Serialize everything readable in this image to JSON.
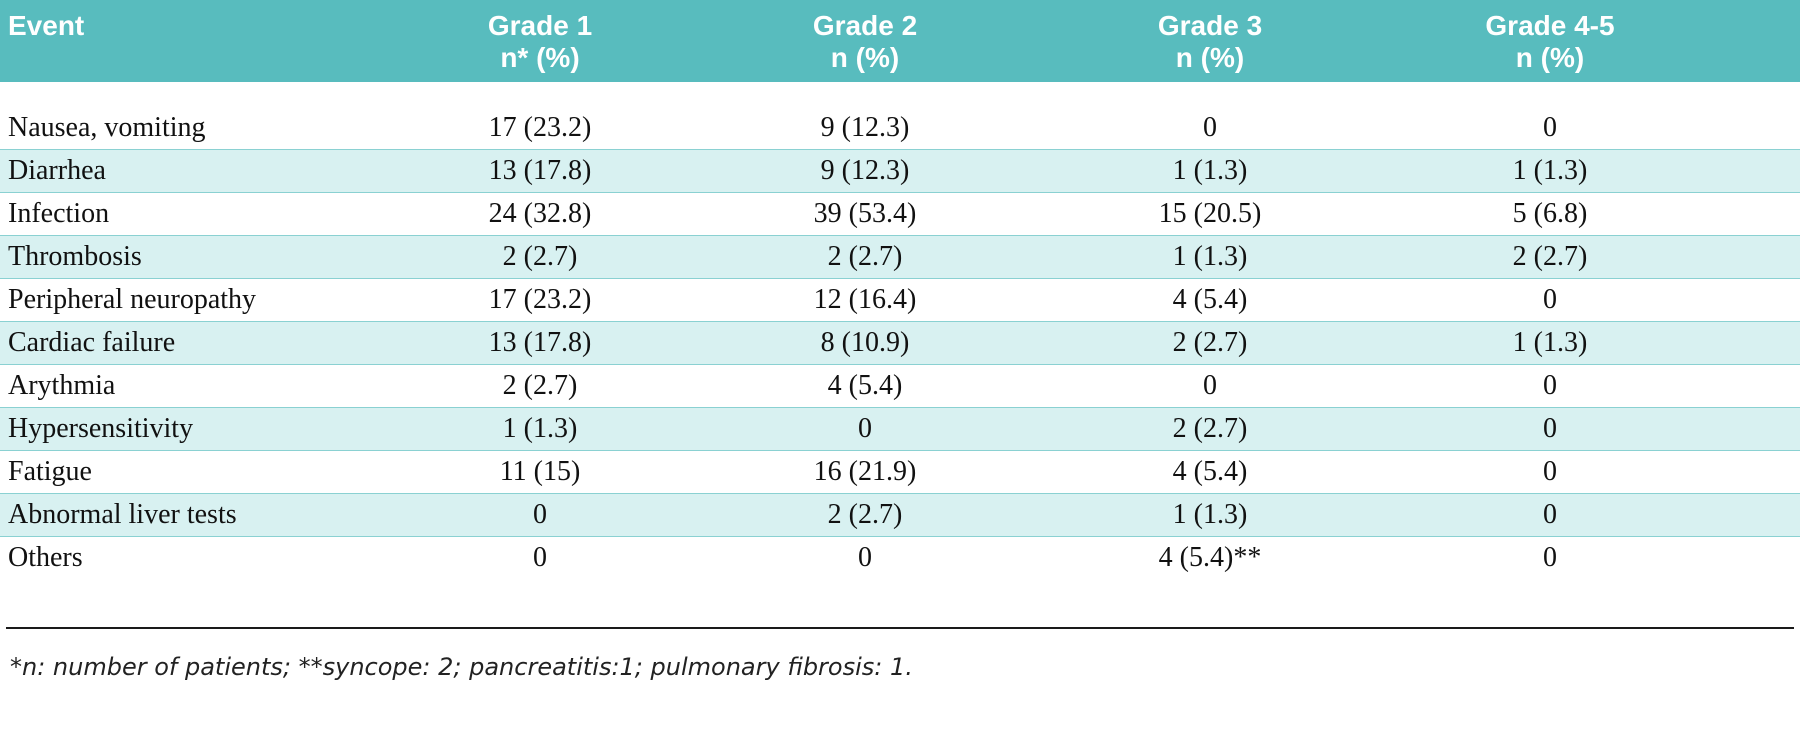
{
  "table": {
    "columns": [
      {
        "label": "Event",
        "sublabel": ""
      },
      {
        "label": "Grade 1",
        "sublabel": "n* (%)"
      },
      {
        "label": "Grade 2",
        "sublabel": "n (%)"
      },
      {
        "label": "Grade 3",
        "sublabel": "n (%)"
      },
      {
        "label": "Grade 4-5",
        "sublabel": "n (%)"
      }
    ],
    "rows": [
      {
        "event": "Nausea, vomiting",
        "values": [
          "17 (23.2)",
          "9 (12.3)",
          "0",
          "0"
        ]
      },
      {
        "event": "Diarrhea",
        "values": [
          "13 (17.8)",
          "9 (12.3)",
          "1 (1.3)",
          "1 (1.3)"
        ]
      },
      {
        "event": "Infection",
        "values": [
          "24 (32.8)",
          "39 (53.4)",
          "15 (20.5)",
          "5 (6.8)"
        ]
      },
      {
        "event": "Thrombosis",
        "values": [
          "2 (2.7)",
          "2 (2.7)",
          "1 (1.3)",
          "2 (2.7)"
        ]
      },
      {
        "event": "Peripheral neuropathy",
        "values": [
          "17 (23.2)",
          "12 (16.4)",
          "4 (5.4)",
          "0"
        ]
      },
      {
        "event": "Cardiac failure",
        "values": [
          "13 (17.8)",
          "8 (10.9)",
          "2 (2.7)",
          "1 (1.3)"
        ]
      },
      {
        "event": "Arythmia",
        "values": [
          "2 (2.7)",
          "4 (5.4)",
          "0",
          "0"
        ]
      },
      {
        "event": "Hypersensitivity",
        "values": [
          "1 (1.3)",
          "0",
          "2 (2.7)",
          "0"
        ]
      },
      {
        "event": "Fatigue",
        "values": [
          "11 (15)",
          "16 (21.9)",
          "4 (5.4)",
          "0"
        ]
      },
      {
        "event": "Abnormal liver tests",
        "values": [
          "0",
          "2 (2.7)",
          "1 (1.3)",
          "0"
        ]
      },
      {
        "event": "Others",
        "values": [
          "0",
          "0",
          "4 (5.4)**",
          "0"
        ]
      }
    ]
  },
  "footnote": "*n: number of patients; **syncope: 2; pancreatitis:1; pulmonary fibrosis: 1.",
  "colors": {
    "header_bg": "#58bcbe",
    "alt_row_bg": "#d8f1f1",
    "alt_row_border": "#8ad1d2",
    "header_text": "#ffffff",
    "body_text": "#111111"
  }
}
